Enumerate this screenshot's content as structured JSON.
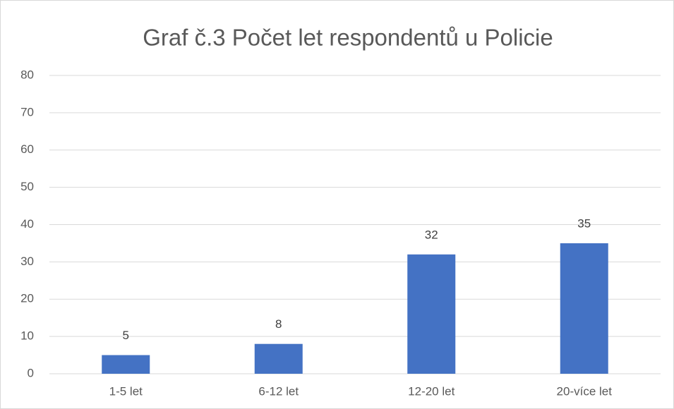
{
  "chart_data": {
    "type": "bar",
    "title": "Graf č.3 Počet let respondentů u Policie",
    "categories": [
      "1-5 let",
      "6-12 let",
      "12-20 let",
      "20-více let"
    ],
    "values": [
      5,
      8,
      32,
      35
    ],
    "color": "#4472c4",
    "ylim": [
      0,
      80
    ],
    "yticks": [
      0,
      10,
      20,
      30,
      40,
      50,
      60,
      70,
      80
    ],
    "grid": true
  }
}
